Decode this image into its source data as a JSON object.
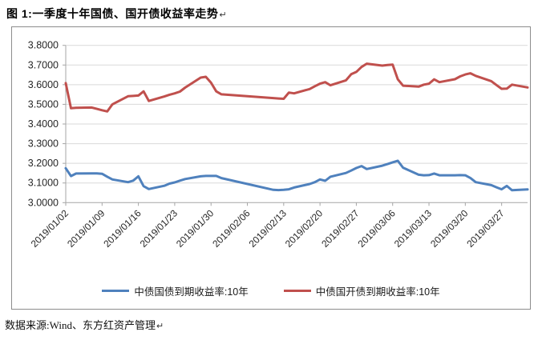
{
  "document": {
    "figure_title": "图 1:一季度十年国债、国开债收益率走势",
    "paragraph_mark": "↵",
    "source_note": "数据来源:Wind、东方红资产管理"
  },
  "colors": {
    "blue_series": "#4F81BD",
    "red_series": "#C0504D",
    "gridline": "#D9D9D9",
    "axis": "#A6A6A6",
    "tick_text": "#262626",
    "frame_border": "#8C8C8C"
  },
  "chart_data": {
    "type": "line",
    "title": "",
    "grid": true,
    "legend_position": "bottom",
    "y_axis": {
      "min": 3.0,
      "max": 3.8,
      "step": 0.1,
      "tick_labels": [
        "3.0000",
        "3.1000",
        "3.2000",
        "3.3000",
        "3.4000",
        "3.5000",
        "3.6000",
        "3.7000",
        "3.8000"
      ]
    },
    "x_axis": {
      "start_date": "2019/01/02",
      "span_days": 89,
      "tick_labels": [
        "2019/01/02",
        "2019/01/09",
        "2019/01/16",
        "2019/01/23",
        "2019/01/30",
        "2019/02/06",
        "2019/02/13",
        "2019/02/20",
        "2019/02/27",
        "2019/03/06",
        "2019/03/13",
        "2019/03/20",
        "2019/03/27"
      ]
    },
    "series": [
      {
        "name": "中债国债到期收益率:10年",
        "color": "#4F81BD",
        "points": [
          [
            "2019/01/02",
            3.175
          ],
          [
            "2019/01/03",
            3.135
          ],
          [
            "2019/01/04",
            3.148
          ],
          [
            "2019/01/07",
            3.149
          ],
          [
            "2019/01/08",
            3.149
          ],
          [
            "2019/01/09",
            3.147
          ],
          [
            "2019/01/10",
            3.132
          ],
          [
            "2019/01/11",
            3.118
          ],
          [
            "2019/01/14",
            3.104
          ],
          [
            "2019/01/15",
            3.112
          ],
          [
            "2019/01/16",
            3.134
          ],
          [
            "2019/01/17",
            3.084
          ],
          [
            "2019/01/18",
            3.069
          ],
          [
            "2019/01/21",
            3.086
          ],
          [
            "2019/01/22",
            3.097
          ],
          [
            "2019/01/23",
            3.103
          ],
          [
            "2019/01/24",
            3.112
          ],
          [
            "2019/01/25",
            3.12
          ],
          [
            "2019/01/28",
            3.134
          ],
          [
            "2019/01/29",
            3.136
          ],
          [
            "2019/01/30",
            3.136
          ],
          [
            "2019/01/31",
            3.136
          ],
          [
            "2019/02/01",
            3.125
          ],
          [
            "2019/02/11",
            3.065
          ],
          [
            "2019/02/12",
            3.064
          ],
          [
            "2019/02/13",
            3.065
          ],
          [
            "2019/02/14",
            3.068
          ],
          [
            "2019/02/15",
            3.077
          ],
          [
            "2019/02/18",
            3.095
          ],
          [
            "2019/02/19",
            3.104
          ],
          [
            "2019/02/20",
            3.118
          ],
          [
            "2019/02/21",
            3.111
          ],
          [
            "2019/02/22",
            3.132
          ],
          [
            "2019/02/25",
            3.151
          ],
          [
            "2019/02/26",
            3.163
          ],
          [
            "2019/02/27",
            3.176
          ],
          [
            "2019/02/28",
            3.186
          ],
          [
            "2019/03/01",
            3.171
          ],
          [
            "2019/03/04",
            3.188
          ],
          [
            "2019/03/05",
            3.196
          ],
          [
            "2019/03/06",
            3.205
          ],
          [
            "2019/03/07",
            3.213
          ],
          [
            "2019/03/08",
            3.178
          ],
          [
            "2019/03/11",
            3.142
          ],
          [
            "2019/03/12",
            3.139
          ],
          [
            "2019/03/13",
            3.14
          ],
          [
            "2019/03/14",
            3.148
          ],
          [
            "2019/03/15",
            3.139
          ],
          [
            "2019/03/18",
            3.139
          ],
          [
            "2019/03/19",
            3.14
          ],
          [
            "2019/03/20",
            3.139
          ],
          [
            "2019/03/21",
            3.125
          ],
          [
            "2019/03/22",
            3.104
          ],
          [
            "2019/03/25",
            3.089
          ],
          [
            "2019/03/26",
            3.078
          ],
          [
            "2019/03/27",
            3.068
          ],
          [
            "2019/03/28",
            3.085
          ],
          [
            "2019/03/29",
            3.063
          ],
          [
            "2019/04/01",
            3.067
          ]
        ]
      },
      {
        "name": "中债国开债到期收益率:10年",
        "color": "#C0504D",
        "points": [
          [
            "2019/01/02",
            3.608
          ],
          [
            "2019/01/03",
            3.48
          ],
          [
            "2019/01/04",
            3.482
          ],
          [
            "2019/01/07",
            3.484
          ],
          [
            "2019/01/08",
            3.477
          ],
          [
            "2019/01/09",
            3.47
          ],
          [
            "2019/01/10",
            3.464
          ],
          [
            "2019/01/11",
            3.5
          ],
          [
            "2019/01/14",
            3.541
          ],
          [
            "2019/01/15",
            3.543
          ],
          [
            "2019/01/16",
            3.545
          ],
          [
            "2019/01/17",
            3.566
          ],
          [
            "2019/01/18",
            3.517
          ],
          [
            "2019/01/21",
            3.54
          ],
          [
            "2019/01/22",
            3.549
          ],
          [
            "2019/01/23",
            3.556
          ],
          [
            "2019/01/24",
            3.565
          ],
          [
            "2019/01/25",
            3.585
          ],
          [
            "2019/01/28",
            3.636
          ],
          [
            "2019/01/29",
            3.64
          ],
          [
            "2019/01/30",
            3.61
          ],
          [
            "2019/01/31",
            3.566
          ],
          [
            "2019/02/01",
            3.551
          ],
          [
            "2019/02/11",
            3.532
          ],
          [
            "2019/02/12",
            3.53
          ],
          [
            "2019/02/13",
            3.528
          ],
          [
            "2019/02/14",
            3.56
          ],
          [
            "2019/02/15",
            3.556
          ],
          [
            "2019/02/18",
            3.578
          ],
          [
            "2019/02/19",
            3.592
          ],
          [
            "2019/02/20",
            3.605
          ],
          [
            "2019/02/21",
            3.613
          ],
          [
            "2019/02/22",
            3.597
          ],
          [
            "2019/02/25",
            3.622
          ],
          [
            "2019/02/26",
            3.653
          ],
          [
            "2019/02/27",
            3.665
          ],
          [
            "2019/02/28",
            3.69
          ],
          [
            "2019/03/01",
            3.707
          ],
          [
            "2019/03/04",
            3.697
          ],
          [
            "2019/03/05",
            3.7
          ],
          [
            "2019/03/06",
            3.702
          ],
          [
            "2019/03/07",
            3.627
          ],
          [
            "2019/03/08",
            3.595
          ],
          [
            "2019/03/11",
            3.59
          ],
          [
            "2019/03/12",
            3.6
          ],
          [
            "2019/03/13",
            3.605
          ],
          [
            "2019/03/14",
            3.627
          ],
          [
            "2019/03/15",
            3.613
          ],
          [
            "2019/03/18",
            3.628
          ],
          [
            "2019/03/19",
            3.642
          ],
          [
            "2019/03/20",
            3.652
          ],
          [
            "2019/03/21",
            3.658
          ],
          [
            "2019/03/22",
            3.645
          ],
          [
            "2019/03/25",
            3.618
          ],
          [
            "2019/03/26",
            3.598
          ],
          [
            "2019/03/27",
            3.579
          ],
          [
            "2019/03/28",
            3.58
          ],
          [
            "2019/03/29",
            3.6
          ],
          [
            "2019/04/01",
            3.586
          ]
        ]
      }
    ]
  }
}
